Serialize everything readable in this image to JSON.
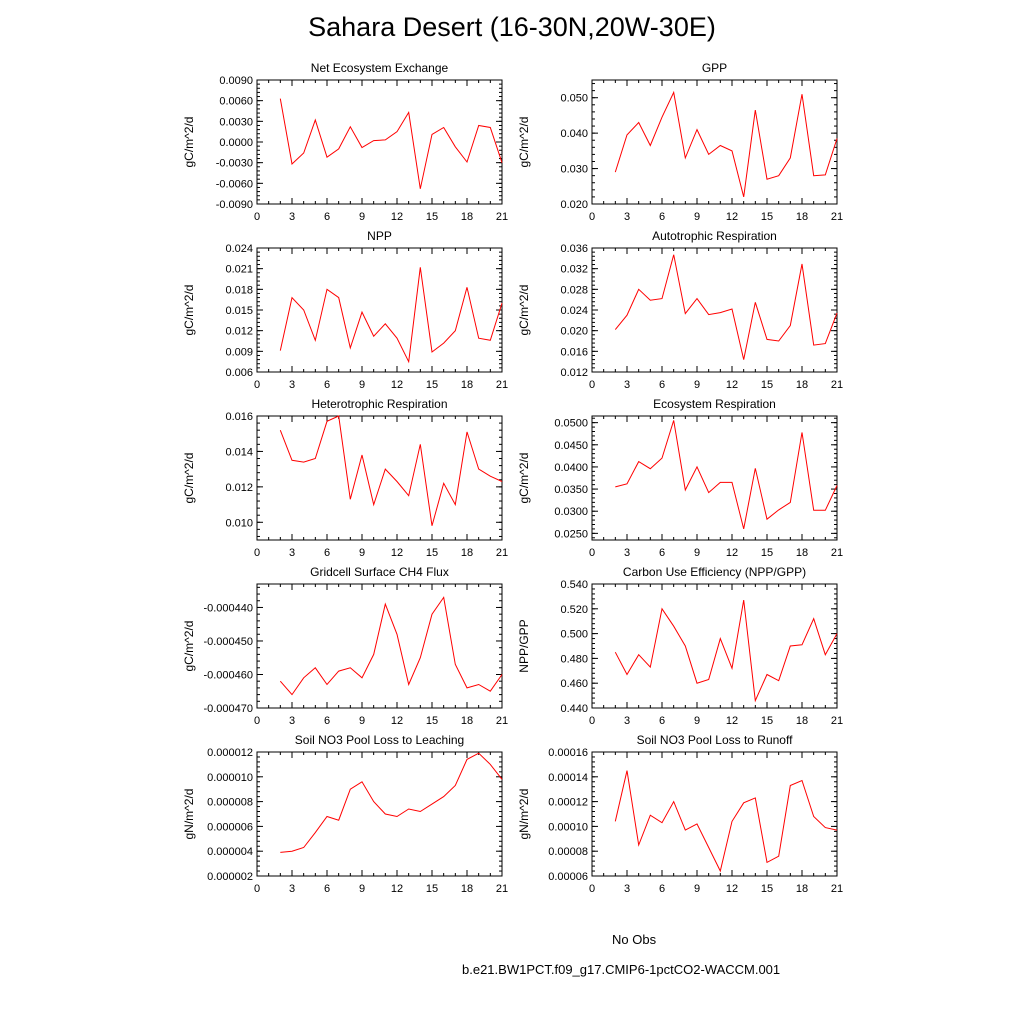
{
  "title": "Sahara Desert (16-30N,20W-30E)",
  "legend": {
    "items": [
      {
        "label": "No Obs",
        "color": "#5555ff",
        "dash": true
      },
      {
        "label": "b.e21.BW1PCT.f09_g17.CMIP6-1pctCO2-WACCM.001",
        "color": "#ff0000",
        "dash": false
      }
    ]
  },
  "chart_data": [
    {
      "type": "line",
      "title": "Net Ecosystem Exchange",
      "ylabel": "gC/m^2/d",
      "xlim": [
        0,
        21
      ],
      "ylim": [
        -0.009,
        0.009
      ],
      "xticks": [
        0,
        3,
        6,
        9,
        12,
        15,
        18,
        21
      ],
      "yticks": [
        -0.009,
        -0.006,
        -0.003,
        0,
        0.003,
        0.006,
        0.009
      ],
      "ytick_labels": [
        "-0.0090",
        "-0.0060",
        "-0.0030",
        "0.0000",
        "0.0030",
        "0.0060",
        "0.0090"
      ],
      "x": [
        2,
        3,
        4,
        5,
        6,
        7,
        8,
        9,
        10,
        11,
        12,
        13,
        14,
        15,
        16,
        17,
        18,
        19,
        20,
        21
      ],
      "y": [
        0.0063,
        -0.0032,
        -0.0016,
        0.0032,
        -0.0022,
        -0.001,
        0.0022,
        -0.0008,
        0.0002,
        0.0003,
        0.0015,
        0.0043,
        -0.0068,
        0.0011,
        0.0021,
        -0.0007,
        -0.0029,
        0.0024,
        0.0021,
        -0.003
      ],
      "color": "#ff0000"
    },
    {
      "type": "line",
      "title": "GPP",
      "ylabel": "gC/m^2/d",
      "xlim": [
        0,
        21
      ],
      "ylim": [
        0.02,
        0.055
      ],
      "xticks": [
        0,
        3,
        6,
        9,
        12,
        15,
        18,
        21
      ],
      "yticks": [
        0.02,
        0.03,
        0.04,
        0.05
      ],
      "ytick_labels": [
        "0.020",
        "0.030",
        "0.040",
        "0.050"
      ],
      "x": [
        2,
        3,
        4,
        5,
        6,
        7,
        8,
        9,
        10,
        11,
        12,
        13,
        14,
        15,
        16,
        17,
        18,
        19,
        20,
        21
      ],
      "y": [
        0.029,
        0.0395,
        0.043,
        0.0365,
        0.0445,
        0.0515,
        0.033,
        0.041,
        0.034,
        0.0365,
        0.035,
        0.022,
        0.0465,
        0.027,
        0.028,
        0.033,
        0.051,
        0.028,
        0.0282,
        0.0385
      ],
      "color": "#ff0000"
    },
    {
      "type": "line",
      "title": "NPP",
      "ylabel": "gC/m^2/d",
      "xlim": [
        0,
        21
      ],
      "ylim": [
        0.006,
        0.024
      ],
      "xticks": [
        0,
        3,
        6,
        9,
        12,
        15,
        18,
        21
      ],
      "yticks": [
        0.006,
        0.009,
        0.012,
        0.015,
        0.018,
        0.021,
        0.024
      ],
      "ytick_labels": [
        "0.006",
        "0.009",
        "0.012",
        "0.015",
        "0.018",
        "0.021",
        "0.024"
      ],
      "x": [
        2,
        3,
        4,
        5,
        6,
        7,
        8,
        9,
        10,
        11,
        12,
        13,
        14,
        15,
        16,
        17,
        18,
        19,
        20,
        21
      ],
      "y": [
        0.0091,
        0.0168,
        0.015,
        0.0106,
        0.018,
        0.0168,
        0.0095,
        0.0147,
        0.0112,
        0.013,
        0.0109,
        0.0075,
        0.0212,
        0.0089,
        0.0102,
        0.012,
        0.0183,
        0.0109,
        0.0106,
        0.016
      ],
      "color": "#ff0000"
    },
    {
      "type": "line",
      "title": "Autotrophic Respiration",
      "ylabel": "gC/m^2/d",
      "xlim": [
        0,
        21
      ],
      "ylim": [
        0.012,
        0.036
      ],
      "xticks": [
        0,
        3,
        6,
        9,
        12,
        15,
        18,
        21
      ],
      "yticks": [
        0.012,
        0.016,
        0.02,
        0.024,
        0.028,
        0.032,
        0.036
      ],
      "ytick_labels": [
        "0.012",
        "0.016",
        "0.020",
        "0.024",
        "0.028",
        "0.032",
        "0.036"
      ],
      "x": [
        2,
        3,
        4,
        5,
        6,
        7,
        8,
        9,
        10,
        11,
        12,
        13,
        14,
        15,
        16,
        17,
        18,
        19,
        20,
        21
      ],
      "y": [
        0.0202,
        0.023,
        0.028,
        0.0259,
        0.0262,
        0.0347,
        0.0233,
        0.0262,
        0.0231,
        0.0235,
        0.0242,
        0.0144,
        0.0255,
        0.0183,
        0.018,
        0.021,
        0.0329,
        0.0172,
        0.0175,
        0.0234
      ],
      "color": "#ff0000"
    },
    {
      "type": "line",
      "title": "Heterotrophic Respiration",
      "ylabel": "gC/m^2/d",
      "xlim": [
        0,
        21
      ],
      "ylim": [
        0.009,
        0.016
      ],
      "xticks": [
        0,
        3,
        6,
        9,
        12,
        15,
        18,
        21
      ],
      "yticks": [
        0.01,
        0.012,
        0.014,
        0.016
      ],
      "ytick_labels": [
        "0.010",
        "0.012",
        "0.014",
        "0.016"
      ],
      "x": [
        2,
        3,
        4,
        5,
        6,
        7,
        8,
        9,
        10,
        11,
        12,
        13,
        14,
        15,
        16,
        17,
        18,
        19,
        20,
        21
      ],
      "y": [
        0.0152,
        0.0135,
        0.0134,
        0.0136,
        0.0157,
        0.016,
        0.0113,
        0.0138,
        0.011,
        0.013,
        0.0123,
        0.0115,
        0.0144,
        0.0098,
        0.0122,
        0.011,
        0.0151,
        0.013,
        0.0126,
        0.0123
      ],
      "color": "#ff0000"
    },
    {
      "type": "line",
      "title": "Ecosystem Respiration",
      "ylabel": "gC/m^2/d",
      "xlim": [
        0,
        21
      ],
      "ylim": [
        0.0235,
        0.0515
      ],
      "xticks": [
        0,
        3,
        6,
        9,
        12,
        15,
        18,
        21
      ],
      "yticks": [
        0.025,
        0.03,
        0.035,
        0.04,
        0.045,
        0.05
      ],
      "ytick_labels": [
        "0.0250",
        "0.0300",
        "0.0350",
        "0.0400",
        "0.0450",
        "0.0500"
      ],
      "x": [
        2,
        3,
        4,
        5,
        6,
        7,
        8,
        9,
        10,
        11,
        12,
        13,
        14,
        15,
        16,
        17,
        18,
        19,
        20,
        21
      ],
      "y": [
        0.0355,
        0.0362,
        0.0412,
        0.0396,
        0.042,
        0.0505,
        0.0348,
        0.04,
        0.0342,
        0.0365,
        0.0365,
        0.026,
        0.0397,
        0.0282,
        0.0303,
        0.032,
        0.0478,
        0.0302,
        0.0302,
        0.0358
      ],
      "color": "#ff0000"
    },
    {
      "type": "line",
      "title": "Gridcell Surface CH4 Flux",
      "ylabel": "gC/m^2/d",
      "xlim": [
        0,
        21
      ],
      "ylim": [
        -0.00047,
        -0.000433
      ],
      "xticks": [
        0,
        3,
        6,
        9,
        12,
        15,
        18,
        21
      ],
      "yticks": [
        -0.00047,
        -0.00046,
        -0.00045,
        -0.00044
      ],
      "ytick_labels": [
        "-0.000470",
        "-0.000460",
        "-0.000450",
        "-0.000440"
      ],
      "x": [
        2,
        3,
        4,
        5,
        6,
        7,
        8,
        9,
        10,
        11,
        12,
        13,
        14,
        15,
        16,
        17,
        18,
        19,
        20,
        21
      ],
      "y": [
        -0.000462,
        -0.000466,
        -0.000461,
        -0.000458,
        -0.000463,
        -0.000459,
        -0.000458,
        -0.000461,
        -0.000454,
        -0.000439,
        -0.000448,
        -0.000463,
        -0.000455,
        -0.000442,
        -0.000437,
        -0.000457,
        -0.000464,
        -0.000463,
        -0.000465,
        -0.00046
      ],
      "color": "#ff0000"
    },
    {
      "type": "line",
      "title": "Carbon Use Efficiency (NPP/GPP)",
      "ylabel": "NPP/GPP",
      "xlim": [
        0,
        21
      ],
      "ylim": [
        0.44,
        0.54
      ],
      "xticks": [
        0,
        3,
        6,
        9,
        12,
        15,
        18,
        21
      ],
      "yticks": [
        0.44,
        0.46,
        0.48,
        0.5,
        0.52,
        0.54
      ],
      "ytick_labels": [
        "0.440",
        "0.460",
        "0.480",
        "0.500",
        "0.520",
        "0.540"
      ],
      "x": [
        2,
        3,
        4,
        5,
        6,
        7,
        8,
        9,
        10,
        11,
        12,
        13,
        14,
        15,
        16,
        17,
        18,
        19,
        20,
        21
      ],
      "y": [
        0.485,
        0.467,
        0.483,
        0.473,
        0.52,
        0.506,
        0.49,
        0.46,
        0.463,
        0.496,
        0.472,
        0.527,
        0.446,
        0.467,
        0.462,
        0.49,
        0.491,
        0.512,
        0.483,
        0.5
      ],
      "color": "#ff0000"
    },
    {
      "type": "line",
      "title": "Soil NO3 Pool Loss to Leaching",
      "ylabel": "gN/m^2/d",
      "xlim": [
        0,
        21
      ],
      "ylim": [
        2e-06,
        1.2e-05
      ],
      "xticks": [
        0,
        3,
        6,
        9,
        12,
        15,
        18,
        21
      ],
      "yticks": [
        2e-06,
        4e-06,
        6e-06,
        8e-06,
        1e-05,
        1.2e-05
      ],
      "ytick_labels": [
        "0.000002",
        "0.000004",
        "0.000006",
        "0.000008",
        "0.000010",
        "0.000012"
      ],
      "x": [
        2,
        3,
        4,
        5,
        6,
        7,
        8,
        9,
        10,
        11,
        12,
        13,
        14,
        15,
        16,
        17,
        18,
        19,
        20,
        21
      ],
      "y": [
        3.9e-06,
        4e-06,
        4.3e-06,
        5.5e-06,
        6.8e-06,
        6.5e-06,
        9e-06,
        9.6e-06,
        8e-06,
        7e-06,
        6.8e-06,
        7.4e-06,
        7.2e-06,
        7.8e-06,
        8.4e-06,
        9.3e-06,
        1.14e-05,
        1.19e-05,
        1.1e-05,
        9.8e-06
      ],
      "color": "#ff0000"
    },
    {
      "type": "line",
      "title": "Soil NO3 Pool Loss to Runoff",
      "ylabel": "gN/m^2/d",
      "xlim": [
        0,
        21
      ],
      "ylim": [
        6e-05,
        0.00016
      ],
      "xticks": [
        0,
        3,
        6,
        9,
        12,
        15,
        18,
        21
      ],
      "yticks": [
        6e-05,
        8e-05,
        0.0001,
        0.00012,
        0.00014,
        0.00016
      ],
      "ytick_labels": [
        "0.00006",
        "0.00008",
        "0.00010",
        "0.00012",
        "0.00014",
        "0.00016"
      ],
      "x": [
        2,
        3,
        4,
        5,
        6,
        7,
        8,
        9,
        10,
        11,
        12,
        13,
        14,
        15,
        16,
        17,
        18,
        19,
        20,
        21
      ],
      "y": [
        0.000104,
        0.000145,
        8.5e-05,
        0.000109,
        0.000103,
        0.00012,
        9.7e-05,
        0.000102,
        8.3e-05,
        6.4e-05,
        0.000104,
        0.000119,
        0.000123,
        7.1e-05,
        7.6e-05,
        0.000133,
        0.000137,
        0.000108,
        9.9e-05,
        9.7e-05
      ],
      "color": "#ff0000"
    }
  ]
}
